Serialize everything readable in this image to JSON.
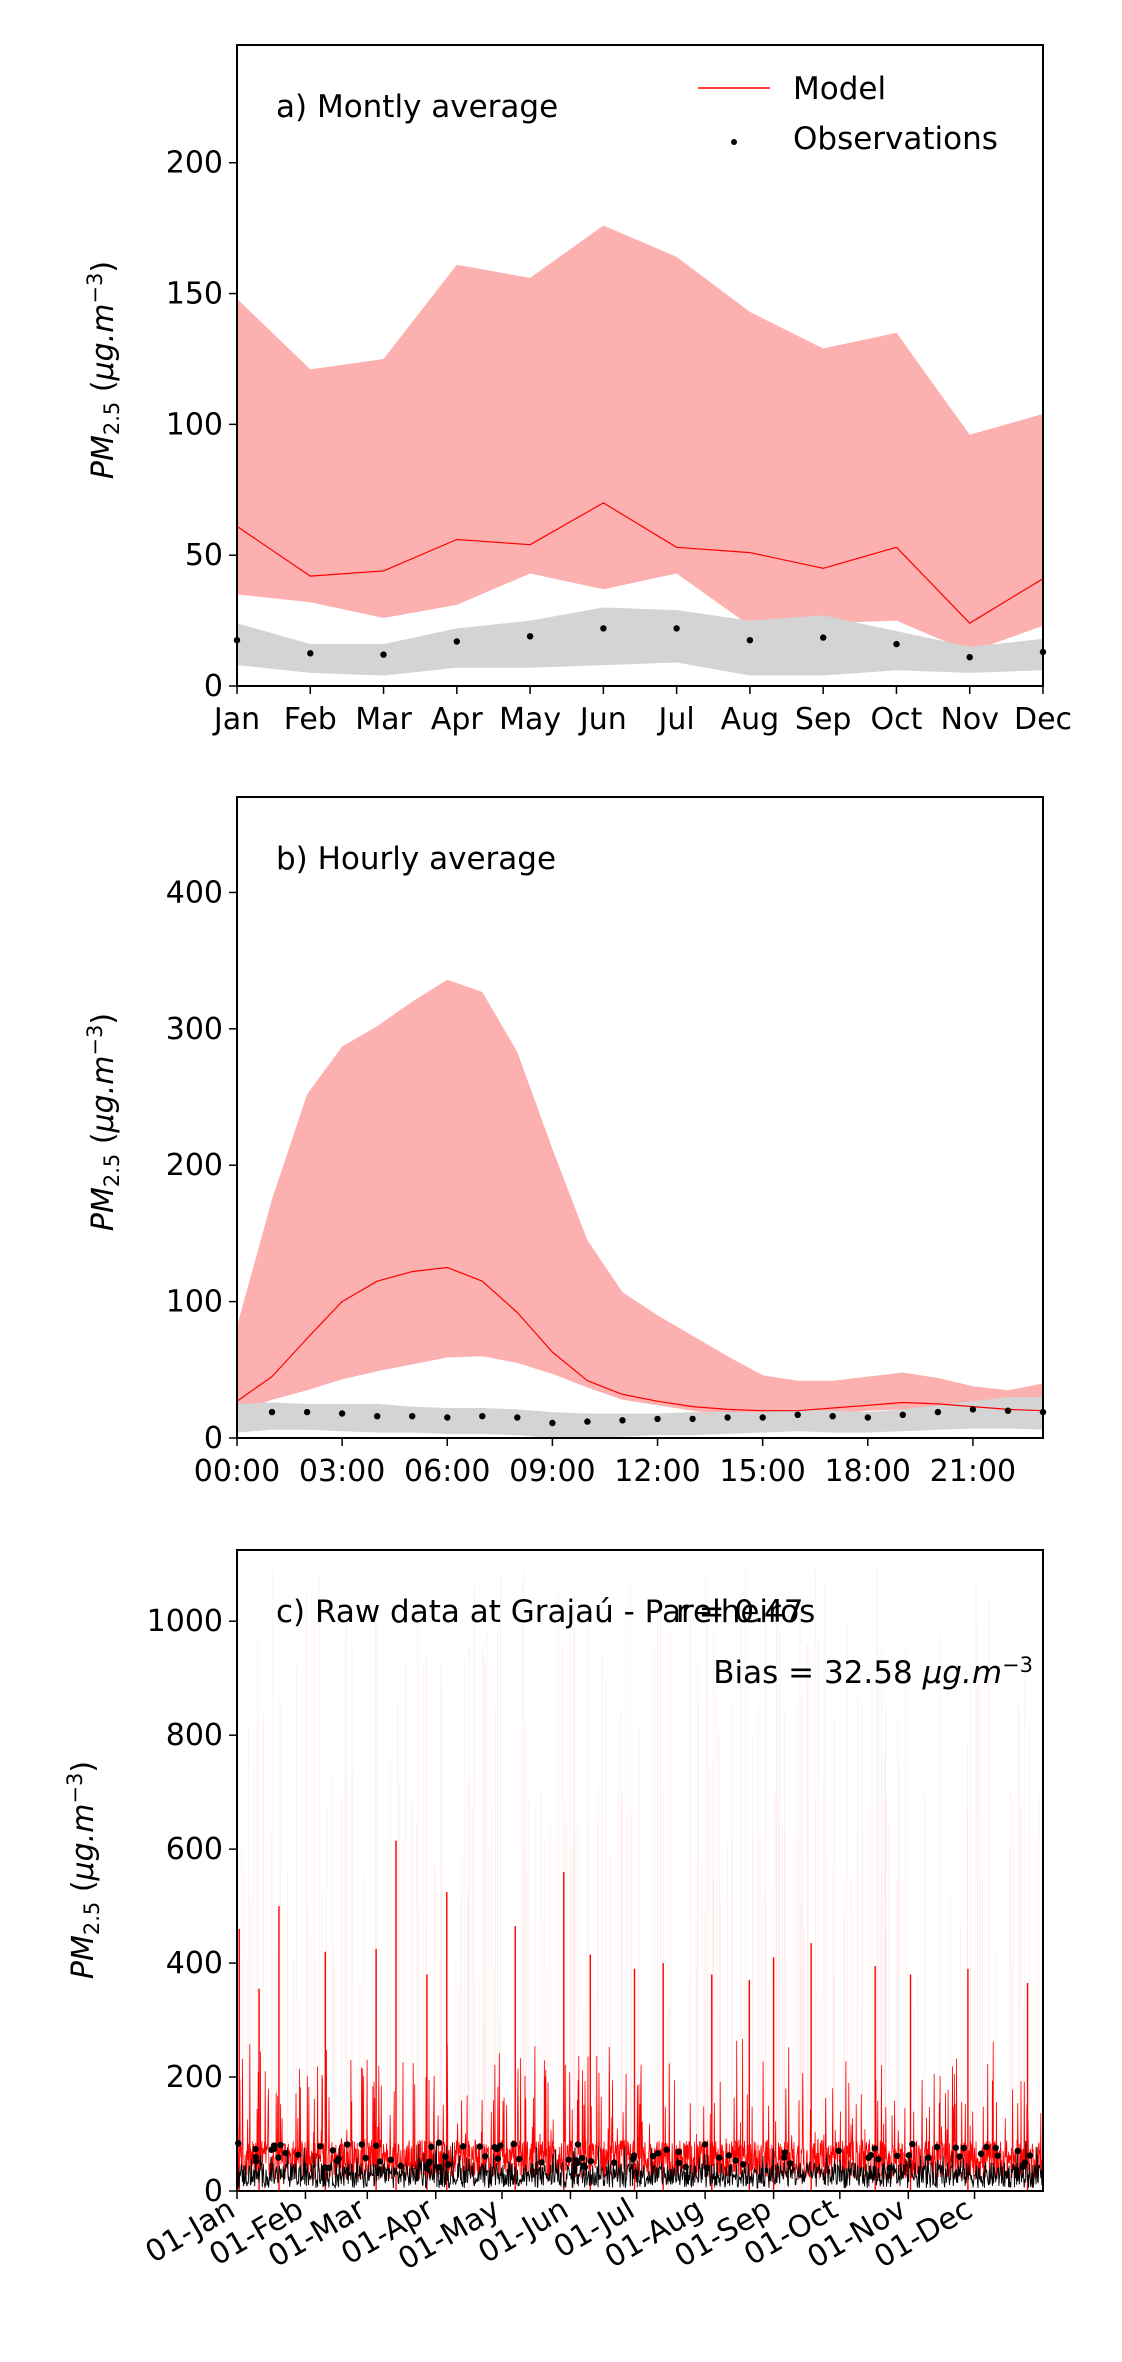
{
  "chart_data": [
    {
      "type": "area",
      "title": "a) Montly average",
      "ylabel": "PM2.5 (μg.m−3)",
      "categories": [
        "Jan",
        "Feb",
        "Mar",
        "Apr",
        "May",
        "Jun",
        "Jul",
        "Aug",
        "Sep",
        "Oct",
        "Nov",
        "Dec"
      ],
      "ylim": [
        0,
        245
      ],
      "yticks": [
        0,
        50,
        100,
        150,
        200
      ],
      "legend": {
        "position": "top-right",
        "entries": [
          "Model",
          "Observations"
        ]
      },
      "series": [
        {
          "name": "Model",
          "kind": "line",
          "values": [
            61,
            42,
            44,
            56,
            54,
            70,
            53,
            51,
            45,
            53,
            24,
            41
          ]
        },
        {
          "name": "Observations",
          "kind": "points",
          "values": [
            17.5,
            12.5,
            12,
            17,
            19,
            22,
            22,
            17.5,
            18.5,
            16,
            11,
            13
          ]
        }
      ],
      "model_band": {
        "upper": [
          148,
          121,
          125,
          161,
          156,
          176,
          164,
          143,
          129,
          135,
          96,
          104
        ],
        "lower": [
          35,
          32,
          26,
          31,
          43,
          37,
          43,
          23,
          24,
          25,
          13,
          23
        ]
      },
      "obs_band": {
        "upper": [
          24,
          16,
          16,
          22,
          25,
          30,
          29,
          25,
          27,
          21,
          15,
          18
        ],
        "lower": [
          8,
          5,
          4,
          7,
          7,
          8,
          9,
          4,
          4,
          6,
          5,
          6
        ]
      },
      "colors": {
        "model": "#ff0000",
        "model_band": "#fcb0b0",
        "obs": "#000000",
        "obs_band": "#d4d4d4"
      }
    },
    {
      "type": "area",
      "title": "b) Hourly average",
      "ylabel": "PM2.5 (μg.m−3)",
      "x": [
        0,
        1,
        2,
        3,
        4,
        5,
        6,
        7,
        8,
        9,
        10,
        11,
        12,
        13,
        14,
        15,
        16,
        17,
        18,
        19,
        20,
        21,
        22,
        23
      ],
      "xticks": [
        "00:00",
        "03:00",
        "06:00",
        "09:00",
        "12:00",
        "15:00",
        "18:00",
        "21:00"
      ],
      "ylim": [
        0,
        470
      ],
      "yticks": [
        0,
        100,
        200,
        300,
        400
      ],
      "series": [
        {
          "name": "Model",
          "kind": "line",
          "values": [
            27,
            45,
            73,
            100,
            115,
            122,
            125,
            115,
            92,
            63,
            42,
            32,
            27,
            23,
            21,
            20,
            20,
            22,
            24,
            26,
            25,
            23,
            21,
            20
          ]
        },
        {
          "name": "Observations",
          "kind": "points",
          "values": [
            null,
            19,
            19,
            18,
            16,
            16,
            15,
            16,
            15,
            11,
            12,
            13,
            14,
            14,
            15,
            15,
            17,
            16,
            15,
            17,
            19,
            21,
            20,
            19
          ]
        }
      ],
      "model_band": {
        "upper": [
          82,
          175,
          252,
          287,
          302,
          320,
          336,
          327,
          283,
          212,
          145,
          107,
          90,
          75,
          60,
          46,
          42,
          42,
          45,
          48,
          44,
          38,
          35,
          40
        ],
        "lower": [
          18,
          28,
          35,
          43,
          49,
          54,
          59,
          60,
          55,
          47,
          37,
          28,
          24,
          20,
          17,
          16,
          17,
          18,
          20,
          21,
          20,
          19,
          18,
          18
        ]
      },
      "obs_band": {
        "upper": [
          25,
          26,
          25,
          25,
          25,
          23,
          22,
          22,
          21,
          19,
          18,
          18,
          18,
          19,
          19,
          19,
          21,
          20,
          19,
          21,
          24,
          27,
          30,
          30
        ],
        "lower": [
          4,
          6,
          6,
          5,
          4,
          4,
          3,
          3,
          2,
          0,
          0,
          1,
          2,
          2,
          3,
          4,
          5,
          4,
          4,
          5,
          6,
          7,
          7,
          6
        ]
      },
      "colors": {
        "model": "#ff0000",
        "model_band": "#fcb0b0",
        "obs": "#000000",
        "obs_band": "#d4d4d4"
      }
    },
    {
      "type": "line",
      "title": "c) Raw data at Grajaú - Parelheiros",
      "ylabel": "PM2.5 (μg.m−3)",
      "stats": {
        "r": "r = 0.47",
        "bias": "Bias = 32.58 μg.m−3"
      },
      "x_range_days": [
        0,
        365
      ],
      "xticks": [
        "01-Jan",
        "01-Feb",
        "01-Mar",
        "01-Apr",
        "01-May",
        "01-Jun",
        "01-Jul",
        "01-Aug",
        "01-Sep",
        "01-Oct",
        "01-Nov",
        "01-Dec"
      ],
      "ylim": [
        0,
        1125
      ],
      "yticks": [
        0,
        200,
        400,
        600,
        800,
        1000
      ],
      "model_peaks": [
        {
          "day": 1,
          "value": 460
        },
        {
          "day": 10,
          "value": 355
        },
        {
          "day": 19,
          "value": 500
        },
        {
          "day": 40,
          "value": 420
        },
        {
          "day": 63,
          "value": 425
        },
        {
          "day": 72,
          "value": 615
        },
        {
          "day": 86,
          "value": 380
        },
        {
          "day": 95,
          "value": 525
        },
        {
          "day": 126,
          "value": 465
        },
        {
          "day": 148,
          "value": 560
        },
        {
          "day": 160,
          "value": 415
        },
        {
          "day": 180,
          "value": 390
        },
        {
          "day": 193,
          "value": 400
        },
        {
          "day": 215,
          "value": 380
        },
        {
          "day": 232,
          "value": 370
        },
        {
          "day": 243,
          "value": 410
        },
        {
          "day": 260,
          "value": 435
        },
        {
          "day": 289,
          "value": 395
        },
        {
          "day": 305,
          "value": 380
        },
        {
          "day": 331,
          "value": 390
        },
        {
          "day": 358,
          "value": 365
        }
      ],
      "colors": {
        "model": "#ff0000",
        "obs": "#000000"
      }
    }
  ]
}
